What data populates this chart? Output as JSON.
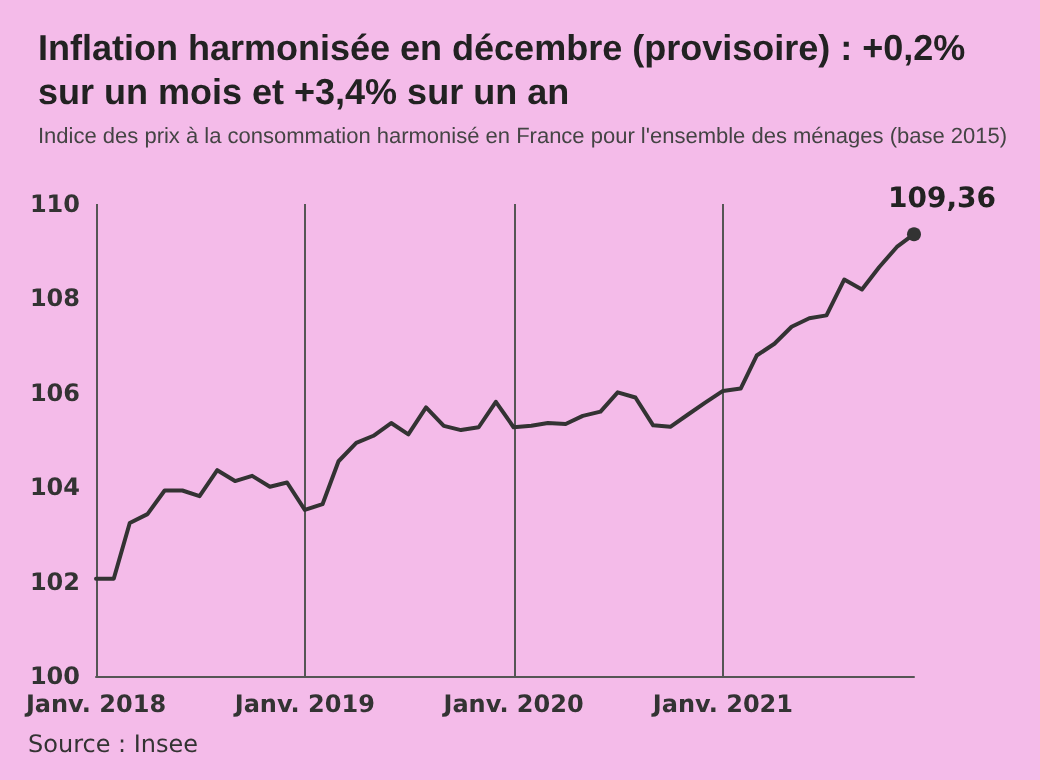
{
  "chart_data": {
    "type": "line",
    "title": "Inflation harmonisée en décembre (provisoire) : +0,2%\nsur un mois et +3,4% sur un an",
    "subtitle": "Indice des prix à la consommation harmonisé en France pour l'ensemble des ménages (base 2015)",
    "annotations": [
      "Source : Insee"
    ],
    "x": [
      "2018-01",
      "2018-02",
      "2018-03",
      "2018-04",
      "2018-05",
      "2018-06",
      "2018-07",
      "2018-08",
      "2018-09",
      "2018-10",
      "2018-11",
      "2018-12",
      "2019-01",
      "2019-02",
      "2019-03",
      "2019-04",
      "2019-05",
      "2019-06",
      "2019-07",
      "2019-08",
      "2019-09",
      "2019-10",
      "2019-11",
      "2019-12",
      "2020-01",
      "2020-02",
      "2020-03",
      "2020-04",
      "2020-05",
      "2020-06",
      "2020-07",
      "2020-08",
      "2020-09",
      "2020-10",
      "2020-11",
      "2020-12",
      "2021-01",
      "2021-02",
      "2021-03",
      "2021-04",
      "2021-05",
      "2021-06",
      "2021-07",
      "2021-08",
      "2021-09",
      "2021-10",
      "2021-11",
      "2021-12"
    ],
    "series": [
      {
        "color": "#333333",
        "values": [
          102.06,
          102.06,
          103.24,
          103.43,
          103.93,
          103.93,
          103.81,
          104.36,
          104.13,
          104.24,
          104.01,
          104.1,
          103.52,
          103.64,
          104.55,
          104.94,
          105.09,
          105.36,
          105.12,
          105.69,
          105.3,
          105.21,
          105.27,
          105.81,
          105.27,
          105.3,
          105.36,
          105.34,
          105.51,
          105.6,
          106.01,
          105.9,
          105.31,
          105.28,
          105.54,
          105.79,
          106.04,
          106.09,
          106.79,
          107.04,
          107.4,
          107.58,
          107.64,
          108.4,
          108.19,
          108.66,
          109.09,
          109.36
        ],
        "value_labels": [
          null,
          null,
          null,
          null,
          null,
          null,
          null,
          null,
          null,
          null,
          null,
          null,
          null,
          null,
          null,
          null,
          null,
          null,
          null,
          null,
          null,
          null,
          null,
          null,
          null,
          null,
          null,
          null,
          null,
          null,
          null,
          null,
          null,
          null,
          null,
          null,
          null,
          null,
          null,
          null,
          null,
          null,
          null,
          null,
          null,
          null,
          null,
          "109,36"
        ]
      }
    ],
    "xlim": [
      "2018-01",
      "2021-12"
    ],
    "xticks": [
      {
        "value": "2018-01",
        "label": "Janv. 2018"
      },
      {
        "value": "2019-01",
        "label": "Janv. 2019"
      },
      {
        "value": "2020-01",
        "label": "Janv. 2020"
      },
      {
        "value": "2021-01",
        "label": "Janv. 2021"
      }
    ],
    "ylim": [
      100,
      110
    ],
    "yticks": [
      100,
      102,
      104,
      106,
      108,
      110
    ],
    "grid": "x",
    "marker": "none",
    "line_style": "solid"
  }
}
